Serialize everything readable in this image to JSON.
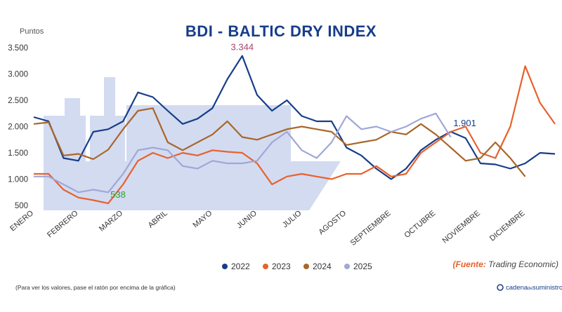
{
  "chart_data": {
    "type": "line",
    "title": "BDI - BALTIC DRY INDEX",
    "y_label": "Puntos",
    "categories": [
      "ENERO",
      null,
      null,
      "FEBRERO",
      null,
      null,
      "MARZO",
      null,
      null,
      "ABRIL",
      null,
      null,
      "MAYO",
      null,
      null,
      "JUNIO",
      null,
      null,
      "JULIO",
      null,
      null,
      "AGOSTO",
      null,
      null,
      "SEPTIEMBRE",
      null,
      null,
      "OCTUBRE",
      null,
      null,
      "NOVIEMBRE",
      null,
      null,
      "DICIEMBRE",
      null,
      null
    ],
    "series": [
      {
        "name": "2022",
        "color": "#173d8a",
        "values": [
          2180,
          2100,
          1400,
          1350,
          1900,
          1950,
          2100,
          2650,
          2560,
          2300,
          2050,
          2150,
          2350,
          2900,
          3344,
          2600,
          2300,
          2500,
          2200,
          2100,
          2100,
          1600,
          1450,
          1200,
          1000,
          1200,
          1550,
          1750,
          1901,
          1780,
          1300,
          1280,
          1200,
          1300,
          1500,
          1480
        ],
        "value_labels": [
          null,
          null,
          null,
          null,
          null,
          null,
          null,
          null,
          null,
          null,
          null,
          null,
          null,
          null,
          "3.344",
          null,
          null,
          null,
          null,
          null,
          null,
          null,
          null,
          null,
          null,
          null,
          null,
          null,
          "1.901",
          null,
          null,
          null,
          null,
          null,
          null,
          null
        ]
      },
      {
        "name": "2023",
        "color": "#e8612c",
        "values": [
          1100,
          1100,
          800,
          650,
          600,
          538,
          900,
          1350,
          1500,
          1400,
          1500,
          1450,
          1550,
          1520,
          1500,
          1300,
          900,
          1050,
          1100,
          1050,
          1000,
          1100,
          1100,
          1250,
          1050,
          1100,
          1500,
          1700,
          1900,
          2000,
          1500,
          1400,
          2000,
          3150,
          2450,
          2050
        ],
        "value_labels": [
          null,
          null,
          null,
          null,
          null,
          "538",
          null,
          null,
          null,
          null,
          null,
          null,
          null,
          null,
          null,
          null,
          null,
          null,
          null,
          null,
          null,
          null,
          null,
          null,
          null,
          null,
          null,
          null,
          null,
          null,
          null,
          null,
          null,
          null,
          null,
          null
        ]
      },
      {
        "name": "2024",
        "color": "#a8672a",
        "values": [
          2050,
          2080,
          1450,
          1480,
          1380,
          1560,
          1950,
          2300,
          2350,
          1700,
          1550,
          1700,
          1850,
          2100,
          1800,
          1750,
          1850,
          1950,
          2000,
          1950,
          1900,
          1650,
          1700,
          1750,
          1900,
          1850,
          2050,
          1850,
          1600,
          1350,
          1400,
          1700,
          1400,
          1050,
          null,
          null
        ]
      },
      {
        "name": "2025",
        "color": "#9fa8d6",
        "values": [
          1050,
          1050,
          900,
          750,
          800,
          750,
          1100,
          1550,
          1600,
          1550,
          1250,
          1200,
          1350,
          1300,
          1300,
          1350,
          1700,
          1900,
          1550,
          1400,
          1700,
          2200,
          1950,
          2000,
          1900,
          2000,
          2150,
          2250,
          1800,
          null,
          null,
          null,
          null,
          null,
          null,
          null
        ]
      }
    ],
    "ylim": [
      500,
      3500
    ],
    "yticks": [
      {
        "value": 500,
        "label": "500"
      },
      {
        "value": 1000,
        "label": "1.000"
      },
      {
        "value": 1500,
        "label": "1.500"
      },
      {
        "value": 2000,
        "label": "2.000"
      },
      {
        "value": 2500,
        "label": "2.500"
      },
      {
        "value": 3000,
        "label": "3.000"
      },
      {
        "value": 3500,
        "label": "3.500"
      }
    ],
    "grid": false,
    "legend": "bottom",
    "source_prefix": "(Fuente:",
    "source": "Trading Economic)",
    "note": "(Para ver los valores, pase el ratón por encima de la gráfica)",
    "logo": [
      "cadena",
      "de",
      "suministro"
    ]
  }
}
